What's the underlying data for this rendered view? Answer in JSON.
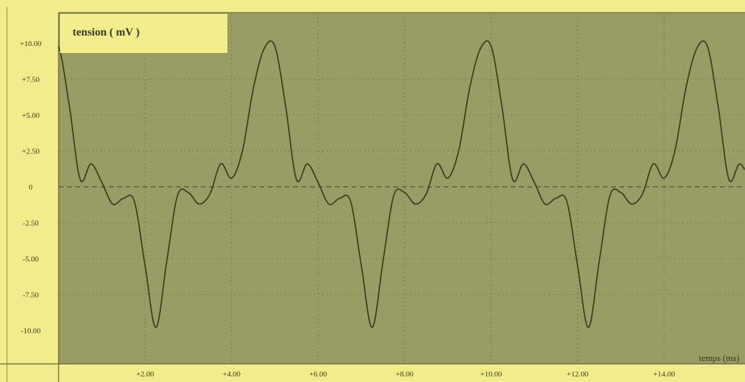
{
  "colors": {
    "background": "#f2ec8a",
    "plot_area": "#9a9c66",
    "curve": "#3a3d22",
    "grid": "#6f7048",
    "label_box": "#f3ee8c",
    "text": "#3b3a1a"
  },
  "chart_data": {
    "type": "line",
    "title": "tension ( mV )",
    "xlabel": "temps (ms)",
    "ylabel": "",
    "xlim": [
      0,
      16
    ],
    "ylim": [
      -10,
      10
    ],
    "x_ticks": [
      2,
      4,
      6,
      8,
      10,
      12,
      14
    ],
    "x_tick_labels": [
      "+2.00",
      "+4.00",
      "+6.00",
      "+8.00",
      "+10.00",
      "+12.00",
      "+14.00"
    ],
    "y_ticks": [
      10,
      7.5,
      5,
      2.5,
      0,
      -2.5,
      -5,
      -7.5,
      -10
    ],
    "y_tick_labels": [
      "+10.00",
      "+7.50",
      "+5.00",
      "+2.50",
      "0",
      "-2.50",
      "-5.00",
      "-7.50",
      "-10.00"
    ],
    "grid": true,
    "series": [
      {
        "period_ms": 5,
        "x": [
          0,
          0.25,
          0.5,
          0.75,
          1,
          1.25,
          1.5,
          1.75,
          2,
          2.25,
          2.5,
          2.75,
          3,
          3.25,
          3.5,
          3.75,
          4,
          4.25,
          4.5,
          4.75,
          5
        ],
        "y": [
          9.8,
          5.6,
          0.5,
          1.6,
          0.3,
          -1.2,
          -0.8,
          -1.0,
          -5.5,
          -9.8,
          -5.2,
          -0.6,
          -0.4,
          -1.2,
          -0.5,
          1.6,
          0.6,
          2.5,
          6.8,
          9.6,
          9.8
        ]
      }
    ]
  }
}
